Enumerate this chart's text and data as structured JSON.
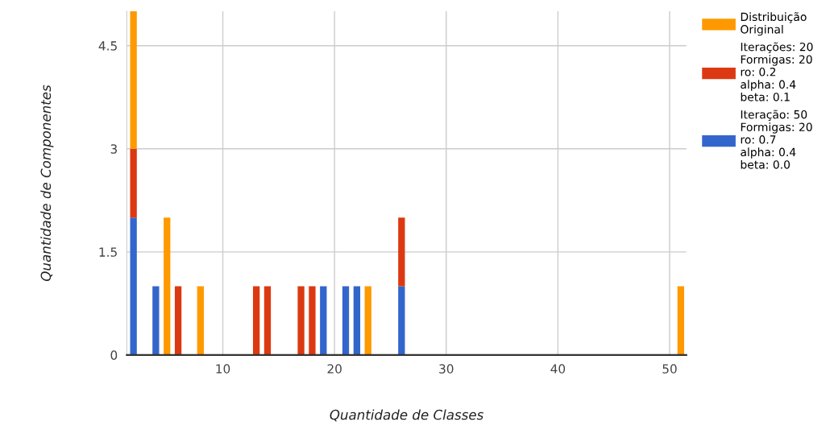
{
  "chart_data": {
    "type": "bar",
    "stacked": true,
    "xlabel": "Quantidade de Classes",
    "ylabel": "Quantidade de Componentes",
    "x": [
      2,
      4,
      5,
      6,
      8,
      13,
      14,
      17,
      18,
      19,
      21,
      22,
      23,
      26,
      51
    ],
    "series": [
      {
        "name": "Iteração: 50\nFormigas: 20\nro: 0.7\nalpha: 0.4\nbeta: 0.0",
        "color": "#3366cc",
        "values": [
          2,
          1,
          null,
          null,
          null,
          null,
          null,
          null,
          null,
          1,
          1,
          1,
          null,
          1,
          null
        ]
      },
      {
        "name": "Iterações: 20\nFormigas: 20\nro: 0.2\nalpha: 0.4\nbeta: 0.1",
        "color": "#dc3912",
        "values": [
          1,
          null,
          null,
          1,
          null,
          1,
          1,
          1,
          1,
          null,
          null,
          null,
          null,
          1,
          null
        ]
      },
      {
        "name": "Distribuição\nOriginal",
        "color": "#ff9900",
        "values": [
          2,
          null,
          2,
          null,
          1,
          null,
          null,
          null,
          null,
          null,
          null,
          null,
          1,
          null,
          1
        ]
      }
    ],
    "xlim": [
      1.4,
      51.5
    ],
    "xticks": [
      10,
      20,
      30,
      40,
      50
    ],
    "ylim": [
      0,
      5
    ],
    "yticks": [
      0,
      1.5,
      3,
      4.5
    ],
    "grid": true,
    "legend": "right"
  }
}
